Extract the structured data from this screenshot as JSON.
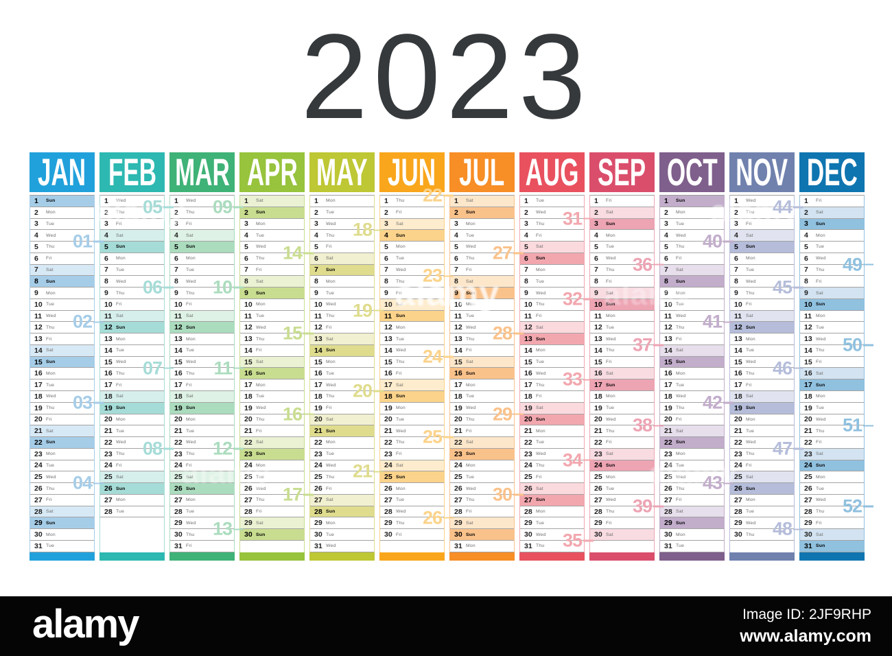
{
  "title": "2023",
  "watermark": {
    "brand": "alamy",
    "image_id": "Image ID: 2JF9RHP",
    "url": "www.alamy.com"
  },
  "calendar": {
    "day_names": [
      "Sun",
      "Mon",
      "Tue",
      "Wed",
      "Thu",
      "Fri",
      "Sat"
    ],
    "months": [
      {
        "abbr": "JAN",
        "days": 31,
        "first_dow": 0,
        "color": "#21a1db",
        "sun_tint": "#a6cde8",
        "sat_tint": "#d8e9f6",
        "weeks": [
          {
            "label": "01",
            "day": 5
          },
          {
            "label": "02",
            "day": 12
          },
          {
            "label": "03",
            "day": 19
          },
          {
            "label": "04",
            "day": 26
          }
        ]
      },
      {
        "abbr": "FEB",
        "days": 28,
        "first_dow": 3,
        "color": "#2db8b1",
        "sun_tint": "#a6dcd7",
        "sat_tint": "#d6efec",
        "weeks": [
          {
            "label": "05",
            "day": 2
          },
          {
            "label": "06",
            "day": 9
          },
          {
            "label": "07",
            "day": 16
          },
          {
            "label": "08",
            "day": 23
          }
        ]
      },
      {
        "abbr": "MAR",
        "days": 31,
        "first_dow": 3,
        "color": "#3fb277",
        "sun_tint": "#abdcbe",
        "sat_tint": "#def2e5",
        "weeks": [
          {
            "label": "09",
            "day": 2
          },
          {
            "label": "10",
            "day": 9
          },
          {
            "label": "11",
            "day": 16
          },
          {
            "label": "12",
            "day": 23
          },
          {
            "label": "13",
            "day": 30
          }
        ]
      },
      {
        "abbr": "APR",
        "days": 30,
        "first_dow": 6,
        "color": "#97c33d",
        "sun_tint": "#c9dd90",
        "sat_tint": "#eaf2d3",
        "weeks": [
          {
            "label": "14",
            "day": 6
          },
          {
            "label": "15",
            "day": 13
          },
          {
            "label": "16",
            "day": 20
          },
          {
            "label": "17",
            "day": 27
          }
        ]
      },
      {
        "abbr": "MAY",
        "days": 31,
        "first_dow": 1,
        "color": "#bec734",
        "sun_tint": "#dfdc8e",
        "sat_tint": "#f1f0d0",
        "weeks": [
          {
            "label": "18",
            "day": 4
          },
          {
            "label": "19",
            "day": 11
          },
          {
            "label": "20",
            "day": 18
          },
          {
            "label": "21",
            "day": 25
          }
        ]
      },
      {
        "abbr": "JUN",
        "days": 30,
        "first_dow": 4,
        "color": "#f9a61c",
        "sun_tint": "#fbd38b",
        "sat_tint": "#fdeccd",
        "weeks": [
          {
            "label": "22",
            "day": 1
          },
          {
            "label": "23",
            "day": 8
          },
          {
            "label": "24",
            "day": 15
          },
          {
            "label": "25",
            "day": 22
          },
          {
            "label": "26",
            "day": 29
          }
        ]
      },
      {
        "abbr": "JUL",
        "days": 31,
        "first_dow": 6,
        "color": "#f78e26",
        "sun_tint": "#fac28b",
        "sat_tint": "#fde7cb",
        "weeks": [
          {
            "label": "27",
            "day": 6
          },
          {
            "label": "28",
            "day": 13
          },
          {
            "label": "29",
            "day": 20
          },
          {
            "label": "30",
            "day": 27
          }
        ]
      },
      {
        "abbr": "AUG",
        "days": 31,
        "first_dow": 2,
        "color": "#e9515f",
        "sun_tint": "#f2a7ae",
        "sat_tint": "#fbdade",
        "weeks": [
          {
            "label": "31",
            "day": 3
          },
          {
            "label": "32",
            "day": 10
          },
          {
            "label": "33",
            "day": 17
          },
          {
            "label": "34",
            "day": 24
          },
          {
            "label": "35",
            "day": 31
          }
        ]
      },
      {
        "abbr": "SEP",
        "days": 30,
        "first_dow": 5,
        "color": "#da4e6c",
        "sun_tint": "#eda4b3",
        "sat_tint": "#f8dce2",
        "weeks": [
          {
            "label": "36",
            "day": 7
          },
          {
            "label": "37",
            "day": 14
          },
          {
            "label": "38",
            "day": 21
          },
          {
            "label": "39",
            "day": 28
          }
        ]
      },
      {
        "abbr": "OCT",
        "days": 31,
        "first_dow": 0,
        "color": "#7f5f8b",
        "sun_tint": "#c2adcb",
        "sat_tint": "#e7dfec",
        "weeks": [
          {
            "label": "40",
            "day": 5
          },
          {
            "label": "41",
            "day": 12
          },
          {
            "label": "42",
            "day": 19
          },
          {
            "label": "43",
            "day": 26
          }
        ]
      },
      {
        "abbr": "NOV",
        "days": 30,
        "first_dow": 3,
        "color": "#7081ae",
        "sun_tint": "#b5bdda",
        "sat_tint": "#e1e4f0",
        "weeks": [
          {
            "label": "44",
            "day": 2
          },
          {
            "label": "45",
            "day": 9
          },
          {
            "label": "46",
            "day": 16
          },
          {
            "label": "47",
            "day": 23
          },
          {
            "label": "48",
            "day": 30
          }
        ]
      },
      {
        "abbr": "DEC",
        "days": 31,
        "first_dow": 5,
        "color": "#0f75b0",
        "sun_tint": "#90c1df",
        "sat_tint": "#d3e3f1",
        "weeks": [
          {
            "label": "49",
            "day": 7
          },
          {
            "label": "50",
            "day": 14
          },
          {
            "label": "51",
            "day": 21
          },
          {
            "label": "52",
            "day": 28
          }
        ]
      }
    ]
  }
}
